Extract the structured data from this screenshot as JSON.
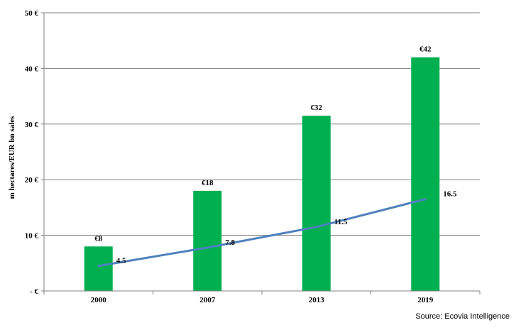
{
  "chart_data": {
    "type": "bar",
    "categories": [
      "2000",
      "2007",
      "2013",
      "2019"
    ],
    "series": [
      {
        "name": "",
        "kind": "bar",
        "values": [
          8,
          18,
          31.5,
          42
        ],
        "labels": [
          "€8",
          "€18",
          "€32",
          "€42"
        ]
      },
      {
        "name": "",
        "kind": "line",
        "values": [
          4.5,
          7.8,
          11.5,
          16.5
        ],
        "labels": [
          "4.5",
          "7.8",
          "11.5",
          "16.5"
        ]
      }
    ],
    "ylabel": "m hectares/EUR bn sales",
    "xlabel": "",
    "ylim": [
      0,
      50
    ],
    "yticks": [
      0,
      10,
      20,
      30,
      40,
      50
    ],
    "ytick_labels": [
      "- €",
      "10 €",
      "20 €",
      "30 €",
      "40 €",
      "50 €"
    ],
    "grid": true,
    "colors": {
      "bar": "#00b050",
      "line": "#4f81bd",
      "grid": "#808080",
      "axis": "#808080"
    }
  },
  "footer": {
    "source": "Source: Ecovia Intelligence"
  }
}
